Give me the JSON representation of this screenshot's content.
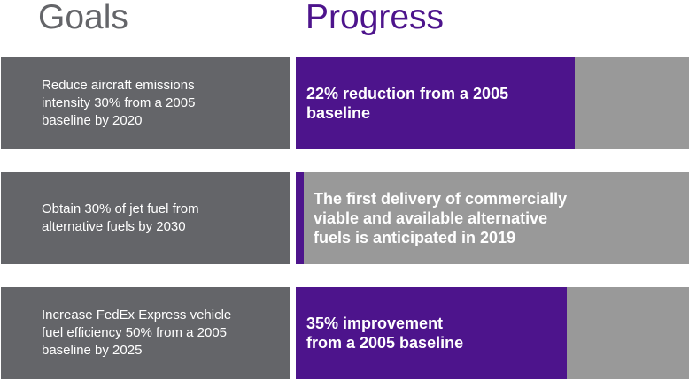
{
  "headers": {
    "goals": "Goals",
    "progress": "Progress"
  },
  "colors": {
    "goal_bg": "#646569",
    "accent_purple": "#4d148c",
    "track_gray": "#999999"
  },
  "rows": [
    {
      "goal_lines": [
        "Reduce aircraft emissions",
        "intensity 30% from a 2005",
        "baseline by 2020"
      ],
      "progress_lines": [
        "22% reduction from a 2005",
        "baseline"
      ],
      "progress_fraction": 0.71
    },
    {
      "goal_lines": [
        "Obtain 30% of jet fuel from",
        "alternative fuels by 2030"
      ],
      "progress_lines": [
        "The first delivery of commercially",
        "viable and available alternative",
        "fuels is anticipated in 2019"
      ],
      "progress_fraction": 0.02
    },
    {
      "goal_lines": [
        "Increase FedEx Express vehicle",
        "fuel efficiency 50% from a 2005",
        "baseline by 2025"
      ],
      "progress_lines": [
        "35% improvement",
        "from a 2005 baseline"
      ],
      "progress_fraction": 0.69
    }
  ]
}
